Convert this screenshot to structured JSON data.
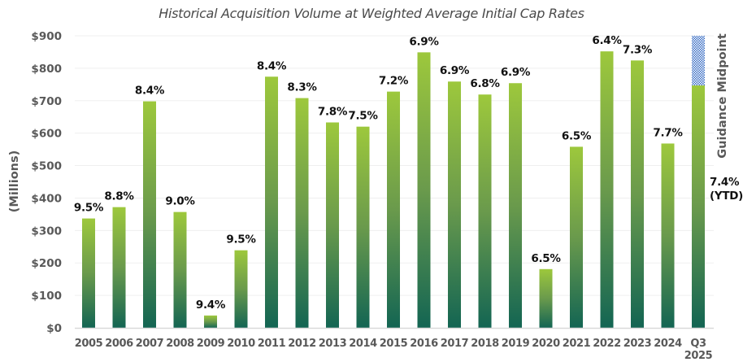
{
  "chart_data": {
    "type": "bar",
    "title": "Historical Acquisition Volume at Weighted Average Initial Cap Rates",
    "xlabel": "",
    "ylabel": "(Millions)",
    "ylim": [
      0,
      900
    ],
    "yticks": [
      0,
      100,
      200,
      300,
      400,
      500,
      600,
      700,
      800,
      900
    ],
    "ytick_labels": [
      "$0",
      "$100",
      "$200",
      "$300",
      "$400",
      "$500",
      "$600",
      "$700",
      "$800",
      "$900"
    ],
    "grid": true,
    "categories": [
      "2005",
      "2006",
      "2007",
      "2008",
      "2009",
      "2010",
      "2011",
      "2012",
      "2013",
      "2014",
      "2015",
      "2016",
      "2017",
      "2018",
      "2019",
      "2020",
      "2021",
      "2022",
      "2023",
      "2024",
      "Q3 2025"
    ],
    "category_lines": [
      [
        "2005"
      ],
      [
        "2006"
      ],
      [
        "2007"
      ],
      [
        "2008"
      ],
      [
        "2009"
      ],
      [
        "2010"
      ],
      [
        "2011"
      ],
      [
        "2012"
      ],
      [
        "2013"
      ],
      [
        "2014"
      ],
      [
        "2015"
      ],
      [
        "2016"
      ],
      [
        "2017"
      ],
      [
        "2018"
      ],
      [
        "2019"
      ],
      [
        "2020"
      ],
      [
        "2021"
      ],
      [
        "2022"
      ],
      [
        "2023"
      ],
      [
        "2024"
      ],
      [
        "Q3",
        "2025"
      ]
    ],
    "series": [
      {
        "name": "Acquisition Volume",
        "values": [
          337,
          372,
          698,
          357,
          38,
          239,
          774,
          708,
          633,
          620,
          728,
          849,
          759,
          719,
          754,
          181,
          558,
          852,
          824,
          568,
          747
        ]
      },
      {
        "name": "Guidance Midpoint",
        "pattern": "checkered",
        "stacked_on": "Acquisition Volume",
        "values": [
          null,
          null,
          null,
          null,
          null,
          null,
          null,
          null,
          null,
          null,
          null,
          null,
          null,
          null,
          null,
          null,
          null,
          null,
          null,
          null,
          153
        ]
      }
    ],
    "data_labels": [
      "9.5%",
      "8.8%",
      "8.4%",
      "9.0%",
      "9.4%",
      "9.5%",
      "8.4%",
      "8.3%",
      "7.8%",
      "7.5%",
      "7.2%",
      "6.9%",
      "6.9%",
      "6.8%",
      "6.9%",
      "6.5%",
      "6.5%",
      "6.4%",
      "7.3%",
      "7.7%",
      "7.4%"
    ],
    "last_label_extra": "(YTD)",
    "guidance_label": "Guidance Midpoint",
    "colors": {
      "bar_top": "#9dc83c",
      "bar_bottom": "#136553",
      "guidance_fill": "#3a6ec4",
      "guidance_bg": "#ffffff"
    }
  }
}
